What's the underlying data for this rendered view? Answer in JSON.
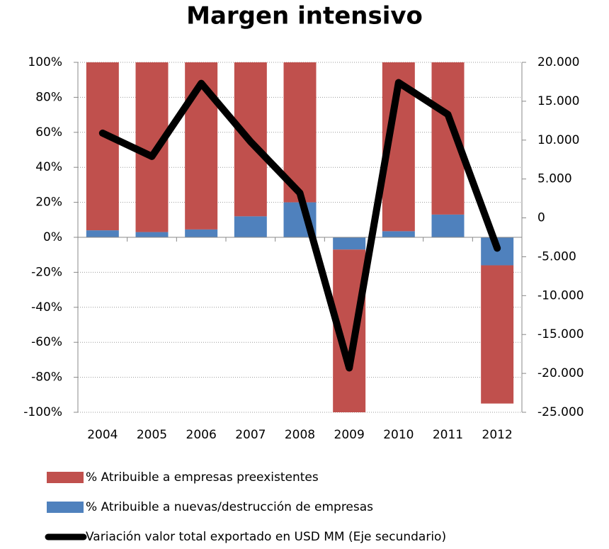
{
  "chart_data": {
    "type": "bar",
    "stacked": true,
    "title": "Margen intensivo",
    "categories": [
      "2004",
      "2005",
      "2006",
      "2007",
      "2008",
      "2009",
      "2010",
      "2011",
      "2012"
    ],
    "series": [
      {
        "name": "% Atribuible a nuevas/destrucción de empresas",
        "color": "#4f81bd",
        "values": [
          4,
          3,
          4.5,
          12,
          20,
          -7,
          3.5,
          13,
          -16
        ]
      },
      {
        "name": "% Atribuible a empresas preexistentes",
        "color": "#c0504d",
        "values": [
          96,
          97,
          95.5,
          88,
          80,
          -93,
          96.5,
          87,
          -79
        ]
      },
      {
        "name": "Variación valor total exportado en USD MM (Eje secundario)",
        "color": "#000000",
        "type": "line",
        "axis": "y2",
        "values": [
          10900,
          7900,
          17300,
          9800,
          3200,
          -19300,
          17400,
          13300,
          -3900
        ]
      }
    ],
    "legend_order": [
      1,
      0,
      2
    ],
    "ylim": [
      -100,
      100
    ],
    "yticks": [
      {
        "value": -100,
        "label": "-100%"
      },
      {
        "value": -80,
        "label": "-80%"
      },
      {
        "value": -60,
        "label": "-60%"
      },
      {
        "value": -40,
        "label": "-40%"
      },
      {
        "value": -20,
        "label": "-20%"
      },
      {
        "value": 0,
        "label": "0%"
      },
      {
        "value": 20,
        "label": "20%"
      },
      {
        "value": 40,
        "label": "40%"
      },
      {
        "value": 60,
        "label": "60%"
      },
      {
        "value": 80,
        "label": "80%"
      },
      {
        "value": 100,
        "label": "100%"
      }
    ],
    "y2lim": [
      -25000,
      20000
    ],
    "y2ticks": [
      {
        "value": -25000,
        "label": "-25.000"
      },
      {
        "value": -20000,
        "label": "-20.000"
      },
      {
        "value": -15000,
        "label": "-15.000"
      },
      {
        "value": -10000,
        "label": "-10.000"
      },
      {
        "value": -5000,
        "label": "-5.000"
      },
      0,
      {
        "value": 5000,
        "label": "5.000"
      },
      {
        "value": 10000,
        "label": "10.000"
      },
      {
        "value": 15000,
        "label": "15.000"
      },
      {
        "value": 20000,
        "label": "20.000"
      }
    ],
    "grid": true
  }
}
